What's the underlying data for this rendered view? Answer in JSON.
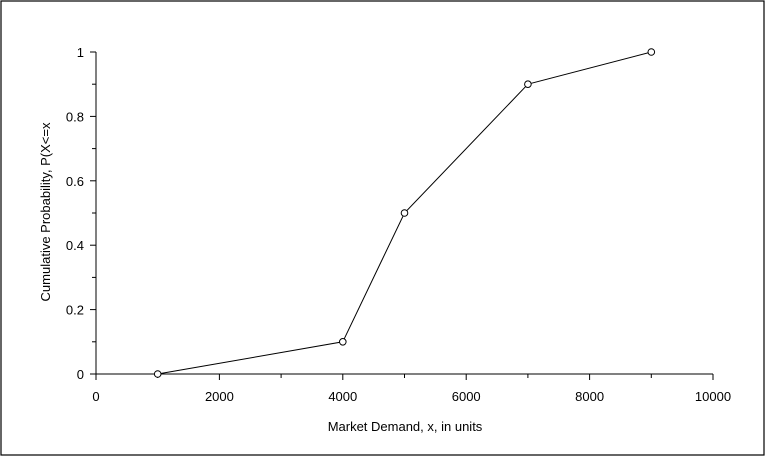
{
  "chart_data": {
    "type": "line",
    "title": "",
    "xlabel": "Market Demand, x, in units",
    "ylabel": "Cumulative Probability, P(X<=x",
    "xlim": [
      0,
      10000
    ],
    "ylim": [
      0,
      1
    ],
    "x_major_ticks": [
      0,
      2000,
      4000,
      6000,
      8000,
      10000
    ],
    "x_minor_ticks": [
      1000,
      3000,
      5000,
      7000,
      9000
    ],
    "x_tick_labels": [
      "0",
      "2000",
      "4000",
      "6000",
      "8000",
      "10000"
    ],
    "y_major_ticks": [
      0,
      0.2,
      0.4,
      0.6,
      0.8,
      1
    ],
    "y_minor_ticks": [
      0.1,
      0.3,
      0.5,
      0.7,
      0.9
    ],
    "y_tick_labels": [
      "0",
      "0.2",
      "0.4",
      "0.6",
      "0.8",
      "1"
    ],
    "grid": false,
    "legend": "none",
    "series": [
      {
        "x": [
          1000,
          4000,
          5000,
          7000,
          9000
        ],
        "values": [
          0,
          0.1,
          0.5,
          0.9,
          1
        ],
        "color": "#000000",
        "marker": "open-circle"
      }
    ]
  }
}
